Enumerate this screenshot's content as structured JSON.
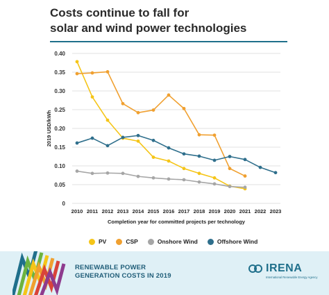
{
  "title": {
    "line1": "Costs continue to fall for",
    "line2": "solar and wind power technologies"
  },
  "chart_data": {
    "type": "line",
    "title": "Costs continue to fall for solar and wind power technologies",
    "xlabel": "Completion year for committed projects per technology",
    "ylabel": "2019 USD/kWh",
    "ylim": [
      0,
      0.4
    ],
    "yticks": [
      "0.40",
      "0.35",
      "0.30",
      "0.25",
      "0.20",
      "0.15",
      "0.10",
      "0.05",
      "0"
    ],
    "ytick_values": [
      0.4,
      0.35,
      0.3,
      0.25,
      0.2,
      0.15,
      0.1,
      0.05,
      0
    ],
    "x": [
      "2010",
      "2011",
      "2012",
      "2013",
      "2014",
      "2015",
      "2016",
      "2017",
      "2018",
      "2019",
      "2020",
      "2021",
      "2022",
      "2023"
    ],
    "grid": true,
    "legend_position": "bottom",
    "series": [
      {
        "name": "PV",
        "color": "#f5c518",
        "values": [
          0.378,
          0.284,
          0.222,
          0.174,
          0.166,
          0.123,
          0.113,
          0.093,
          0.08,
          0.068,
          0.046,
          0.039,
          null,
          null
        ]
      },
      {
        "name": "CSP",
        "color": "#f0a030",
        "values": [
          0.346,
          0.348,
          0.351,
          0.266,
          0.242,
          0.249,
          0.289,
          0.253,
          0.183,
          0.182,
          0.093,
          0.073,
          null,
          null
        ]
      },
      {
        "name": "Onshore Wind",
        "color": "#a6a6a6",
        "values": [
          0.086,
          0.08,
          0.081,
          0.08,
          0.072,
          0.068,
          0.065,
          0.063,
          0.057,
          0.052,
          0.045,
          0.043,
          null,
          null
        ]
      },
      {
        "name": "Offshore Wind",
        "color": "#2f6f8c",
        "values": [
          0.161,
          0.174,
          0.154,
          0.176,
          0.181,
          0.168,
          0.148,
          0.132,
          0.126,
          0.115,
          0.125,
          0.117,
          0.096,
          0.082
        ]
      }
    ]
  },
  "legend": {
    "pv": "PV",
    "csp": "CSP",
    "onshore": "Onshore Wind",
    "offshore": "Offshore Wind"
  },
  "banner": {
    "line1": "RENEWABLE POWER",
    "line2": "GENERATION COSTS IN 2019",
    "logo_text": "IRENA",
    "logo_subtext": "International Renewable Energy Agency"
  },
  "colors": {
    "accent": "#1f6f8b",
    "pv": "#f5c518",
    "csp": "#f0a030",
    "onshore": "#a6a6a6",
    "offshore": "#2f6f8c",
    "banner_bg": "#dff0f6"
  }
}
